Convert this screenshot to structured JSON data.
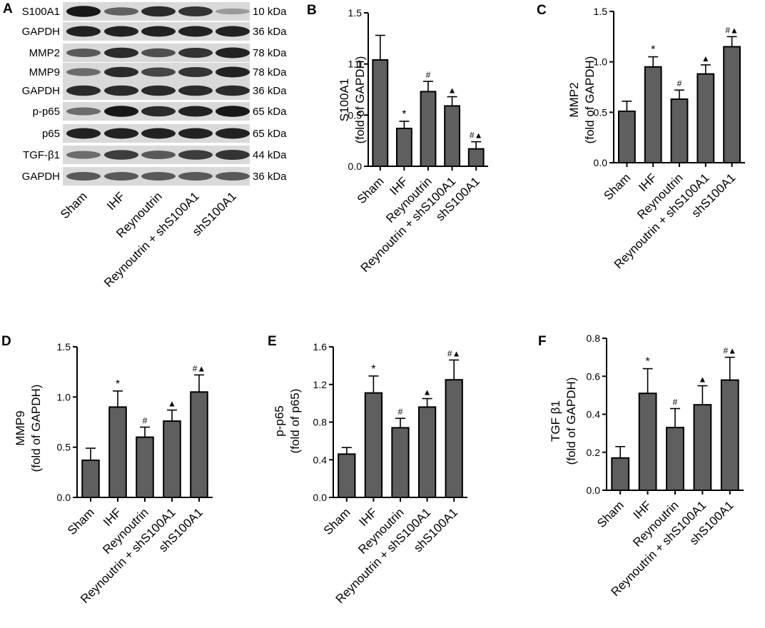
{
  "panel_letters": [
    "A",
    "B",
    "C",
    "D",
    "E",
    "F"
  ],
  "groups": [
    "Sham",
    "IHF",
    "Reynoutrin",
    "Reynoutrin + shS100A1",
    "shS100A1"
  ],
  "blot": {
    "rows": [
      {
        "label": "S100A1",
        "size": "10 kDa",
        "intensity": [
          0.95,
          0.55,
          0.85,
          0.8,
          0.25
        ]
      },
      {
        "label": "GAPDH",
        "size": "36 kDa",
        "intensity": [
          0.9,
          0.9,
          0.9,
          0.9,
          0.9
        ]
      },
      {
        "label": "MMP2",
        "size": "78 kDa",
        "intensity": [
          0.6,
          0.85,
          0.65,
          0.8,
          0.9
        ]
      },
      {
        "label": "MMP9",
        "size": "78 kDa",
        "intensity": [
          0.5,
          0.85,
          0.7,
          0.8,
          0.9
        ]
      },
      {
        "label": "GAPDH",
        "size": "36 kDa",
        "intensity": [
          0.85,
          0.85,
          0.85,
          0.85,
          0.85
        ]
      },
      {
        "label": "p-p65",
        "size": "65 kDa",
        "intensity": [
          0.5,
          0.95,
          0.85,
          0.9,
          0.95
        ]
      },
      {
        "label": "p65",
        "size": "65 kDa",
        "intensity": [
          0.9,
          0.9,
          0.9,
          0.9,
          0.9
        ]
      },
      {
        "label": "TGF-β1",
        "size": "44 kDa",
        "intensity": [
          0.5,
          0.75,
          0.6,
          0.75,
          0.8
        ]
      },
      {
        "label": "GAPDH",
        "size": "36 kDa",
        "intensity": [
          0.6,
          0.6,
          0.6,
          0.6,
          0.6
        ]
      }
    ]
  },
  "bar_color": "#5f5f5f",
  "chart_data": [
    {
      "panel": "B",
      "type": "bar",
      "categories": [
        "Sham",
        "IHF",
        "Reynoutrin",
        "Reynoutrin + shS100A1",
        "shS100A1"
      ],
      "values": [
        1.04,
        0.37,
        0.73,
        0.59,
        0.17
      ],
      "errors": [
        0.24,
        0.07,
        0.1,
        0.09,
        0.07
      ],
      "annotations": [
        "",
        "*",
        "#",
        "▲",
        "#▲"
      ],
      "ylabel_lines": [
        "S100A1",
        "(fold of GAPDH)"
      ],
      "ylim": [
        0,
        1.5
      ],
      "yticks": [
        "0.0",
        "0.5",
        "1.0",
        "1.5"
      ]
    },
    {
      "panel": "C",
      "type": "bar",
      "categories": [
        "Sham",
        "IHF",
        "Reynoutrin",
        "Reynoutrin + shS100A1",
        "shS100A1"
      ],
      "values": [
        0.51,
        0.95,
        0.63,
        0.88,
        1.15
      ],
      "errors": [
        0.1,
        0.1,
        0.09,
        0.09,
        0.1
      ],
      "annotations": [
        "",
        "*",
        "#",
        "▲",
        "#▲"
      ],
      "ylabel_lines": [
        "MMP2",
        "(fold of GAPDH)"
      ],
      "ylim": [
        0,
        1.5
      ],
      "yticks": [
        "0.0",
        "0.5",
        "1.0",
        "1.5"
      ]
    },
    {
      "panel": "D",
      "type": "bar",
      "categories": [
        "Sham",
        "IHF",
        "Reynoutrin",
        "Reynoutrin + shS100A1",
        "shS100A1"
      ],
      "values": [
        0.37,
        0.9,
        0.6,
        0.76,
        1.05
      ],
      "errors": [
        0.12,
        0.16,
        0.1,
        0.11,
        0.17
      ],
      "annotations": [
        "",
        "*",
        "#",
        "▲",
        "#▲"
      ],
      "ylabel_lines": [
        "MMP9",
        "(fold of GAPDH)"
      ],
      "ylim": [
        0,
        1.5
      ],
      "yticks": [
        "0.0",
        "0.5",
        "1.0",
        "1.5"
      ]
    },
    {
      "panel": "E",
      "type": "bar",
      "categories": [
        "Sham",
        "IHF",
        "Reynoutrin",
        "Reynoutrin + shS100A1",
        "shS100A1"
      ],
      "values": [
        0.46,
        1.11,
        0.74,
        0.96,
        1.25
      ],
      "errors": [
        0.07,
        0.18,
        0.1,
        0.09,
        0.21
      ],
      "annotations": [
        "",
        "*",
        "#",
        "▲",
        "#▲"
      ],
      "ylabel_lines": [
        "p-p65",
        "(fold of p65)"
      ],
      "ylim": [
        0,
        1.6
      ],
      "yticks": [
        "0.0",
        "0.4",
        "0.8",
        "1.2",
        "1.6"
      ]
    },
    {
      "panel": "F",
      "type": "bar",
      "categories": [
        "Sham",
        "IHF",
        "Reynoutrin",
        "Reynoutrin + shS100A1",
        "shS100A1"
      ],
      "values": [
        0.17,
        0.51,
        0.33,
        0.45,
        0.58
      ],
      "errors": [
        0.06,
        0.13,
        0.1,
        0.1,
        0.12
      ],
      "annotations": [
        "",
        "*",
        "#",
        "▲",
        "#▲"
      ],
      "ylabel_lines": [
        "TGF β1",
        "(fold of GAPDH)"
      ],
      "ylim": [
        0,
        0.8
      ],
      "yticks": [
        "0.0",
        "0.2",
        "0.4",
        "0.6",
        "0.8"
      ]
    }
  ]
}
